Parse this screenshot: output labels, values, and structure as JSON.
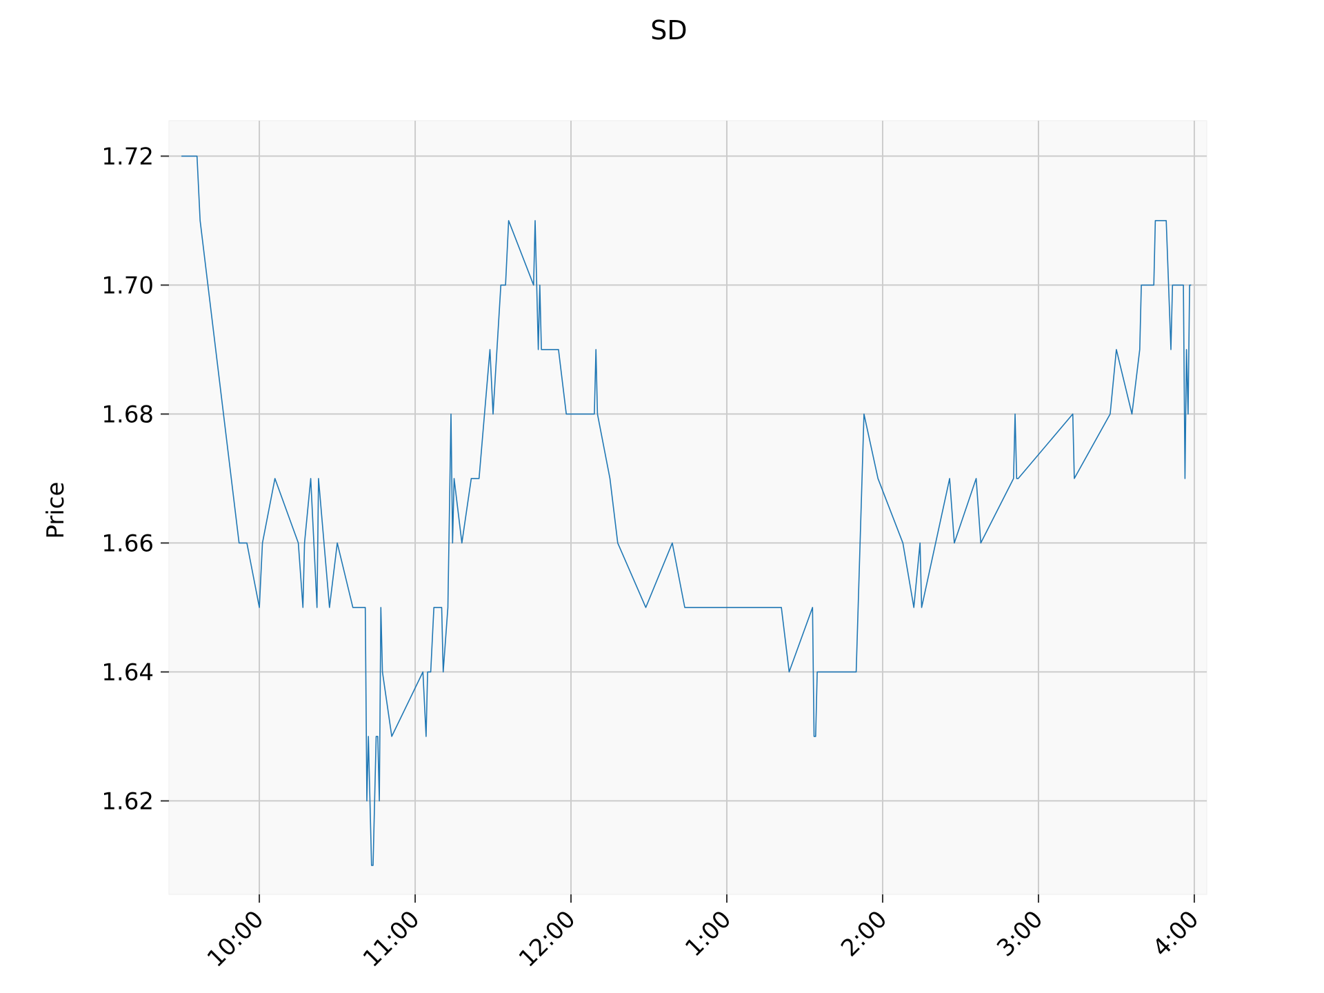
{
  "chart_data": {
    "type": "line",
    "title": "SD",
    "xlabel": "",
    "ylabel": "Price",
    "grid": true,
    "xlim": [
      9.42,
      16.08
    ],
    "ylim": [
      1.6055,
      1.7255
    ],
    "x_ticks": [
      {
        "value": 10,
        "label": "10:00"
      },
      {
        "value": 11,
        "label": "11:00"
      },
      {
        "value": 12,
        "label": "12:00"
      },
      {
        "value": 13,
        "label": "1:00"
      },
      {
        "value": 14,
        "label": "2:00"
      },
      {
        "value": 15,
        "label": "3:00"
      },
      {
        "value": 16,
        "label": "4:00"
      }
    ],
    "y_ticks": [
      {
        "value": 1.62,
        "label": "1.62"
      },
      {
        "value": 1.64,
        "label": "1.64"
      },
      {
        "value": 1.66,
        "label": "1.66"
      },
      {
        "value": 1.68,
        "label": "1.68"
      },
      {
        "value": 1.7,
        "label": "1.70"
      },
      {
        "value": 1.72,
        "label": "1.72"
      }
    ],
    "colors": {
      "line": "#1f77b4",
      "plot_bg": "#f9f9f9",
      "grid": "#cccccc"
    },
    "series": [
      {
        "x": [
          9.5,
          9.6,
          9.62,
          9.87,
          9.92,
          10.0,
          10.02,
          10.1,
          10.25,
          10.28,
          10.29,
          10.33,
          10.37,
          10.38,
          10.45,
          10.5,
          10.6,
          10.68,
          10.69,
          10.7,
          10.72,
          10.73,
          10.75,
          10.76,
          10.77,
          10.78,
          10.79,
          10.85,
          11.05,
          11.07,
          11.08,
          11.1,
          11.12,
          11.17,
          11.18,
          11.21,
          11.23,
          11.24,
          11.25,
          11.3,
          11.36,
          11.41,
          11.48,
          11.5,
          11.55,
          11.58,
          11.6,
          11.76,
          11.77,
          11.78,
          11.79,
          11.8,
          11.81,
          11.82,
          11.92,
          11.97,
          12.15,
          12.16,
          12.17,
          12.25,
          12.3,
          12.48,
          12.65,
          12.73,
          13.35,
          13.4,
          13.55,
          13.56,
          13.57,
          13.58,
          13.83,
          13.88,
          13.97,
          14.13,
          14.2,
          14.24,
          14.25,
          14.43,
          14.46,
          14.6,
          14.63,
          14.84,
          14.85,
          14.86,
          14.87,
          15.22,
          15.23,
          15.46,
          15.5,
          15.6,
          15.65,
          15.66,
          15.74,
          15.75,
          15.82,
          15.85,
          15.86,
          15.93,
          15.94,
          15.95,
          15.96,
          15.97,
          15.98
        ],
        "y": [
          1.72,
          1.72,
          1.71,
          1.66,
          1.66,
          1.65,
          1.66,
          1.67,
          1.66,
          1.65,
          1.66,
          1.67,
          1.65,
          1.67,
          1.65,
          1.66,
          1.65,
          1.65,
          1.62,
          1.63,
          1.61,
          1.61,
          1.63,
          1.63,
          1.62,
          1.65,
          1.64,
          1.63,
          1.64,
          1.63,
          1.64,
          1.64,
          1.65,
          1.65,
          1.64,
          1.65,
          1.68,
          1.66,
          1.67,
          1.66,
          1.67,
          1.67,
          1.69,
          1.68,
          1.7,
          1.7,
          1.71,
          1.7,
          1.71,
          1.7,
          1.69,
          1.7,
          1.69,
          1.69,
          1.69,
          1.68,
          1.68,
          1.69,
          1.68,
          1.67,
          1.66,
          1.65,
          1.66,
          1.65,
          1.65,
          1.64,
          1.65,
          1.63,
          1.63,
          1.64,
          1.64,
          1.68,
          1.67,
          1.66,
          1.65,
          1.66,
          1.65,
          1.67,
          1.66,
          1.67,
          1.66,
          1.67,
          1.68,
          1.67,
          1.67,
          1.68,
          1.67,
          1.68,
          1.69,
          1.68,
          1.69,
          1.7,
          1.7,
          1.71,
          1.71,
          1.69,
          1.7,
          1.7,
          1.67,
          1.69,
          1.68,
          1.7,
          1.7
        ]
      }
    ]
  }
}
